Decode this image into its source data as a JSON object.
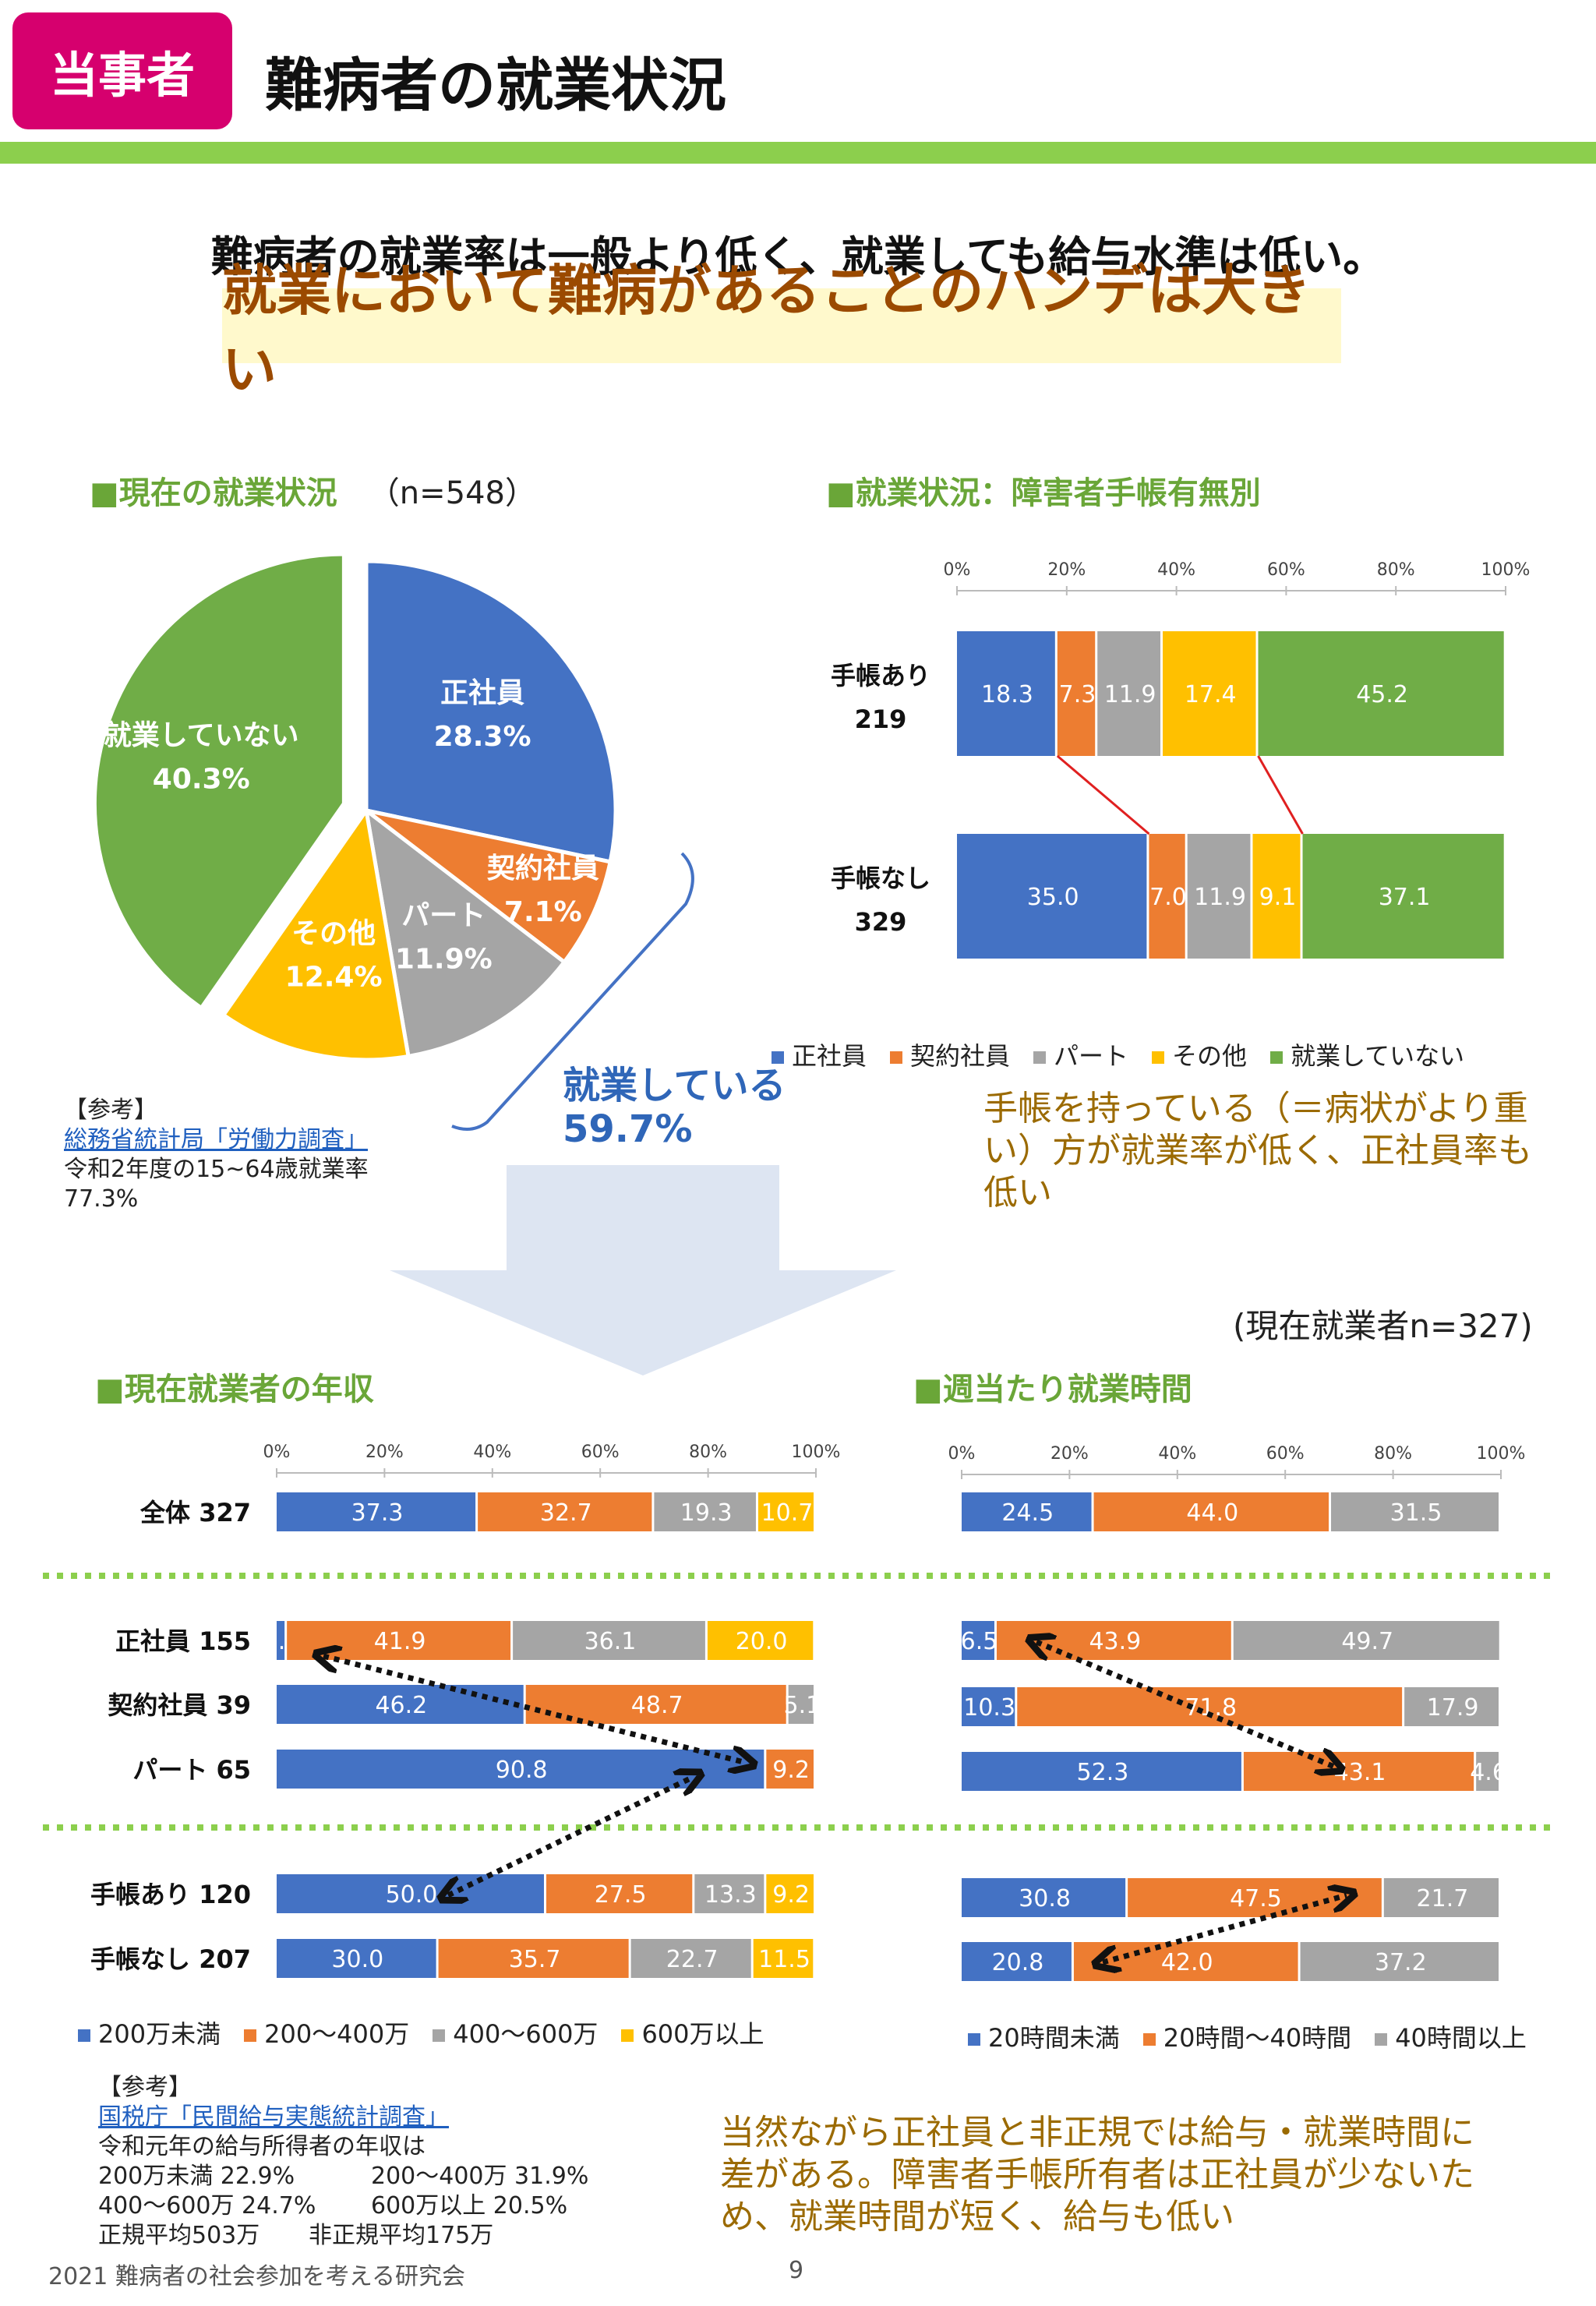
{
  "header": {
    "tag": "当事者",
    "title": "難病者の就業状況"
  },
  "lead": {
    "line1": "難病者の就業率は一般より低く、就業しても給与水準は低い。",
    "line2": "就業において難病があることのハンデは大きい"
  },
  "colors": {
    "blue": "#4472c4",
    "orange": "#ed7d31",
    "gray": "#a5a5a5",
    "yellow": "#ffc000",
    "green": "#70ad47"
  },
  "sections": {
    "pie_title": "■現在の就業状況",
    "pie_n": "（n=548）",
    "techo_title": "■就業状況：障害者手帳有無別",
    "income_title": "■現在就業者の年収",
    "hours_title": "■週当たり就業時間",
    "worker_n": "(現在就業者n=327)"
  },
  "working": {
    "line1": "就業している",
    "line2": "59.7%"
  },
  "ref1": {
    "head": "【参考】",
    "link": "総務省統計局「労働力調査」",
    "l1": "令和2年度の15~64歳就業率",
    "l2": "77.3%"
  },
  "comment1": {
    "l1": "手帳を持っている（＝病状がより重",
    "l2": "い）方が就業率が低く、正社員率も",
    "l3": "低い"
  },
  "ref2": {
    "head": "【参考】",
    "link": "国税庁「民間給与実態統計調査」",
    "l1": "令和元年の給与所得者の年収は",
    "l2a": "200万未満  22.9%",
    "l2b": "200～400万  31.9%",
    "l3a": "400～600万  24.7%",
    "l3b": "600万以上  20.5%",
    "l4a": "正規平均503万",
    "l4b": "非正規平均175万"
  },
  "comment2": {
    "l1": "当然ながら正社員と非正規では給与・就業時間に",
    "l2": "差がある。障害者手帳所有者は正社員が少ないた",
    "l3": "め、就業時間が短く、給与も低い"
  },
  "footer": {
    "left": "2021  難病者の社会参加を考える研究会",
    "page": "9"
  },
  "chart_data": [
    {
      "type": "pie",
      "title": "■現在の就業状況",
      "labels": [
        "正社員",
        "契約社員",
        "パート",
        "その他",
        "就業していない"
      ],
      "values": [
        28.3,
        7.1,
        11.9,
        12.4,
        40.3
      ],
      "value_labels": [
        "28.3%",
        "7.1%",
        "11.9%",
        "12.4%",
        "40.3%"
      ],
      "colors": [
        "#4472c4",
        "#ed7d31",
        "#a5a5a5",
        "#ffc000",
        "#70ad47"
      ]
    },
    {
      "type": "bar",
      "orientation": "horizontal-stacked",
      "title": "■就業状況：障害者手帳有無別",
      "xlim": [
        0,
        100
      ],
      "ticks": [
        "0%",
        "20%",
        "40%",
        "60%",
        "80%",
        "100%"
      ],
      "categories": [
        [
          "手帳あり",
          "219"
        ],
        [
          "手帳なし",
          "329"
        ]
      ],
      "series": [
        {
          "name": "正社員",
          "color": "#4472c4",
          "values": [
            18.3,
            35.0
          ],
          "labels": [
            "18.3",
            "35.0"
          ]
        },
        {
          "name": "契約社員",
          "color": "#ed7d31",
          "values": [
            7.3,
            7.0
          ],
          "labels": [
            "7.3",
            "7.0"
          ]
        },
        {
          "name": "パート",
          "color": "#a5a5a5",
          "values": [
            11.9,
            11.9
          ],
          "labels": [
            "11.9",
            "11.9"
          ]
        },
        {
          "name": "その他",
          "color": "#ffc000",
          "values": [
            17.4,
            9.1
          ],
          "labels": [
            "17.4",
            "9.1"
          ]
        },
        {
          "name": "就業していない",
          "color": "#70ad47",
          "values": [
            45.2,
            37.1
          ],
          "labels": [
            "45.2",
            "37.1"
          ]
        }
      ]
    },
    {
      "type": "bar",
      "orientation": "horizontal-stacked",
      "title": "■現在就業者の年収",
      "xlim": [
        0,
        100
      ],
      "ticks": [
        "0%",
        "20%",
        "40%",
        "60%",
        "80%",
        "100%"
      ],
      "categories": [
        "全体  327",
        "正社員  155",
        "契約社員  39",
        "パート  65",
        "手帳あり  120",
        "手帳なし  207"
      ],
      "series": [
        {
          "name": "200万未満",
          "color": "#4472c4",
          "values": [
            37.3,
            1.9,
            46.2,
            90.8,
            50.0,
            30.0
          ],
          "labels": [
            "37.3",
            "1.9",
            "46.2",
            "90.8",
            "50.0",
            "30.0"
          ]
        },
        {
          "name": "200～400万",
          "color": "#ed7d31",
          "values": [
            32.7,
            41.9,
            48.7,
            9.2,
            27.5,
            35.7
          ],
          "labels": [
            "32.7",
            "41.9",
            "48.7",
            "9.2",
            "27.5",
            "35.7"
          ]
        },
        {
          "name": "400～600万",
          "color": "#a5a5a5",
          "values": [
            19.3,
            36.1,
            5.1,
            0,
            13.3,
            22.7
          ],
          "labels": [
            "19.3",
            "36.1",
            "5.1",
            "",
            "13.3",
            "22.7"
          ]
        },
        {
          "name": "600万以上",
          "color": "#ffc000",
          "values": [
            10.7,
            20.0,
            0,
            0,
            9.2,
            11.5
          ],
          "labels": [
            "10.7",
            "20.0",
            "",
            "",
            "9.2",
            "11.5"
          ]
        }
      ]
    },
    {
      "type": "bar",
      "orientation": "horizontal-stacked",
      "title": "■週当たり就業時間",
      "xlim": [
        0,
        100
      ],
      "ticks": [
        "0%",
        "20%",
        "40%",
        "60%",
        "80%",
        "100%"
      ],
      "categories": [
        "全体",
        "正社員",
        "契約社員",
        "パート",
        "手帳あり",
        "手帳なし"
      ],
      "series": [
        {
          "name": "20時間未満",
          "color": "#4472c4",
          "values": [
            24.5,
            6.5,
            10.3,
            52.3,
            30.8,
            20.8
          ],
          "labels": [
            "24.5",
            "6.5",
            "10.3",
            "52.3",
            "30.8",
            "20.8"
          ]
        },
        {
          "name": "20時間～40時間",
          "color": "#ed7d31",
          "values": [
            44.0,
            43.9,
            71.8,
            43.1,
            47.5,
            42.0
          ],
          "labels": [
            "44.0",
            "43.9",
            "71.8",
            "43.1",
            "47.5",
            "42.0"
          ]
        },
        {
          "name": "40時間以上",
          "color": "#a5a5a5",
          "values": [
            31.5,
            49.7,
            17.9,
            4.6,
            21.7,
            37.2
          ],
          "labels": [
            "31.5",
            "49.7",
            "17.9",
            "4.6",
            "21.7",
            "37.2"
          ]
        }
      ]
    }
  ]
}
